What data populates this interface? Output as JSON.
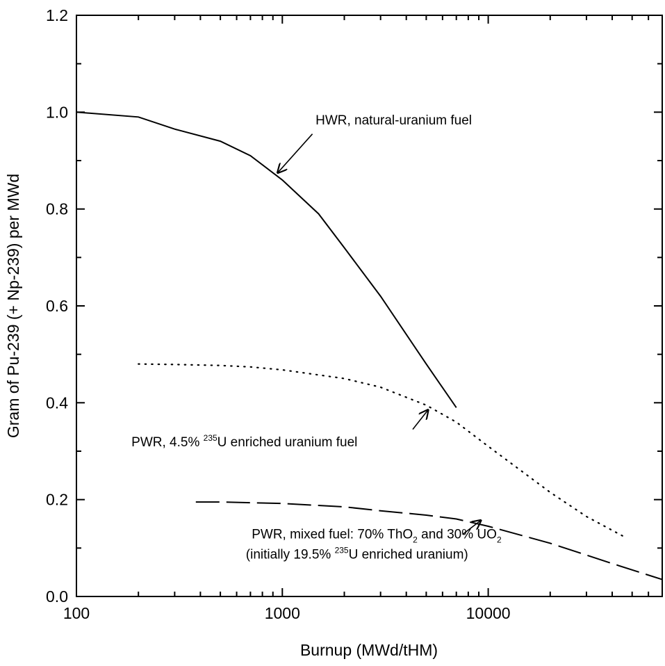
{
  "chart_data": {
    "type": "line",
    "xlabel": "Burnup (MWd/tHM)",
    "ylabel": "Gram of Pu-239 (+ Np-239) per MWd",
    "xscale": "log",
    "xlim": [
      100,
      70000
    ],
    "ylim": [
      0.0,
      1.2
    ],
    "xticks": [
      100,
      1000,
      10000
    ],
    "xtick_labels": [
      "100",
      "1000",
      "10000"
    ],
    "yticks": [
      0.0,
      0.2,
      0.4,
      0.6,
      0.8,
      1.0,
      1.2
    ],
    "ytick_labels": [
      "0.0",
      "0.2",
      "0.4",
      "0.6",
      "0.8",
      "1.0",
      "1.2"
    ],
    "grid": false,
    "series": [
      {
        "line_style": "solid",
        "color": "#000000",
        "x": [
          100,
          200,
          300,
          500,
          700,
          1000,
          1500,
          2000,
          3000,
          5000,
          7000
        ],
        "y": [
          1.0,
          0.99,
          0.965,
          0.94,
          0.91,
          0.86,
          0.79,
          0.72,
          0.62,
          0.48,
          0.39
        ]
      },
      {
        "line_style": "dotted",
        "color": "#000000",
        "x": [
          200,
          300,
          500,
          700,
          1000,
          2000,
          3000,
          5000,
          7000,
          10000,
          20000,
          30000,
          45000
        ],
        "y": [
          0.48,
          0.479,
          0.477,
          0.474,
          0.468,
          0.45,
          0.432,
          0.395,
          0.36,
          0.31,
          0.215,
          0.165,
          0.125
        ]
      },
      {
        "line_style": "dashed",
        "color": "#000000",
        "x": [
          380,
          500,
          1000,
          2000,
          3000,
          5000,
          7000,
          10000,
          20000,
          40000,
          70000
        ],
        "y": [
          0.195,
          0.195,
          0.192,
          0.185,
          0.177,
          0.168,
          0.16,
          0.145,
          0.11,
          0.068,
          0.035
        ]
      }
    ],
    "annotations": [
      {
        "id": "hwr",
        "parts": [
          {
            "t": "HWR, natural-uranium fuel",
            "style": "normal"
          }
        ],
        "arrow_tip": [
          950,
          0.875
        ],
        "arrow_tail": [
          1400,
          0.955
        ],
        "text_at": [
          1450,
          0.975
        ]
      },
      {
        "id": "pwr45",
        "parts": [
          {
            "t": "PWR, 4.5% ",
            "style": "normal"
          },
          {
            "t": "235",
            "style": "sup"
          },
          {
            "t": "U enriched uranium fuel",
            "style": "normal"
          }
        ],
        "arrow_tip": [
          5100,
          0.385
        ],
        "arrow_tail": [
          4300,
          0.345
        ],
        "text_at": [
          185,
          0.31
        ]
      },
      {
        "id": "pwrmix1",
        "parts": [
          {
            "t": "PWR, mixed fuel: 70% ThO",
            "style": "normal"
          },
          {
            "t": "2",
            "style": "sub"
          },
          {
            "t": " and 30% UO",
            "style": "normal"
          },
          {
            "t": "2",
            "style": "sub"
          }
        ],
        "arrow_tip": [
          9200,
          0.157
        ],
        "arrow_tail": [
          7500,
          0.128
        ],
        "text_at": [
          710,
          0.12
        ]
      },
      {
        "id": "pwrmix2",
        "parts": [
          {
            "t": "(initially 19.5% ",
            "style": "normal"
          },
          {
            "t": "235",
            "style": "sup"
          },
          {
            "t": "U enriched uranium)",
            "style": "normal"
          }
        ],
        "text_at": [
          665,
          0.078
        ]
      }
    ]
  }
}
